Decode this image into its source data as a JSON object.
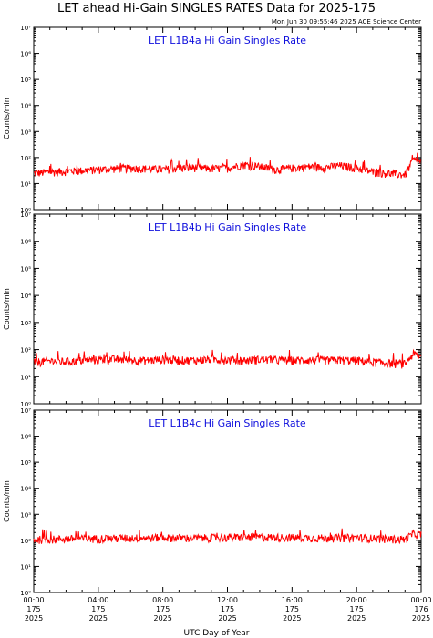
{
  "header": {
    "title": "LET ahead Hi-Gain SINGLES RATES Data for 2025-175",
    "timestamp": "Mon Jun 30 09:55:46 2025 ACE Science Center"
  },
  "colors": {
    "series": "#ff0000",
    "panel_title": "#1010dd",
    "axis": "#000000"
  },
  "chart_data": {
    "type": "line",
    "y_scale": "log",
    "ylim_exponents": [
      0,
      7
    ],
    "xlabel": "UTC Day of Year",
    "ylabel": "Counts/min",
    "x_ticks": [
      {
        "time": "00:00",
        "doy": "175",
        "year": "2025"
      },
      {
        "time": "04:00",
        "doy": "175",
        "year": "2025"
      },
      {
        "time": "08:00",
        "doy": "175",
        "year": "2025"
      },
      {
        "time": "12:00",
        "doy": "175",
        "year": "2025"
      },
      {
        "time": "16:00",
        "doy": "175",
        "year": "2025"
      },
      {
        "time": "20:00",
        "doy": "175",
        "year": "2025"
      },
      {
        "time": "00:00",
        "doy": "176",
        "year": "2025"
      }
    ],
    "x_range_hours": [
      0,
      24
    ],
    "panels": [
      {
        "title": "LET L1B4a Hi Gain Singles Rate",
        "hours": [
          0,
          1,
          2,
          3,
          4,
          5,
          6,
          7,
          8,
          9,
          10,
          11,
          12,
          13,
          14,
          15,
          16,
          17,
          18,
          19,
          20,
          21,
          22,
          23,
          23.5,
          24
        ],
        "values": [
          25,
          28,
          30,
          32,
          35,
          38,
          40,
          38,
          35,
          40,
          42,
          38,
          40,
          55,
          45,
          35,
          40,
          45,
          42,
          50,
          40,
          28,
          25,
          22,
          80,
          70
        ]
      },
      {
        "title": "LET L1B4b Hi Gain Singles Rate",
        "hours": [
          0,
          1,
          2,
          3,
          4,
          5,
          6,
          7,
          8,
          9,
          10,
          11,
          12,
          13,
          14,
          15,
          16,
          17,
          18,
          19,
          20,
          21,
          22,
          23,
          23.5,
          24
        ],
        "values": [
          35,
          38,
          36,
          40,
          42,
          45,
          42,
          40,
          44,
          42,
          40,
          45,
          42,
          40,
          44,
          42,
          40,
          42,
          40,
          42,
          40,
          35,
          32,
          30,
          70,
          55
        ]
      },
      {
        "title": "LET L1B4c Hi Gain Singles Rate",
        "hours": [
          0,
          2,
          4,
          6,
          8,
          10,
          12,
          14,
          16,
          18,
          20,
          22,
          23,
          23.5,
          24
        ],
        "values": [
          110,
          115,
          120,
          125,
          130,
          125,
          130,
          135,
          130,
          125,
          130,
          115,
          110,
          180,
          170
        ]
      }
    ]
  }
}
